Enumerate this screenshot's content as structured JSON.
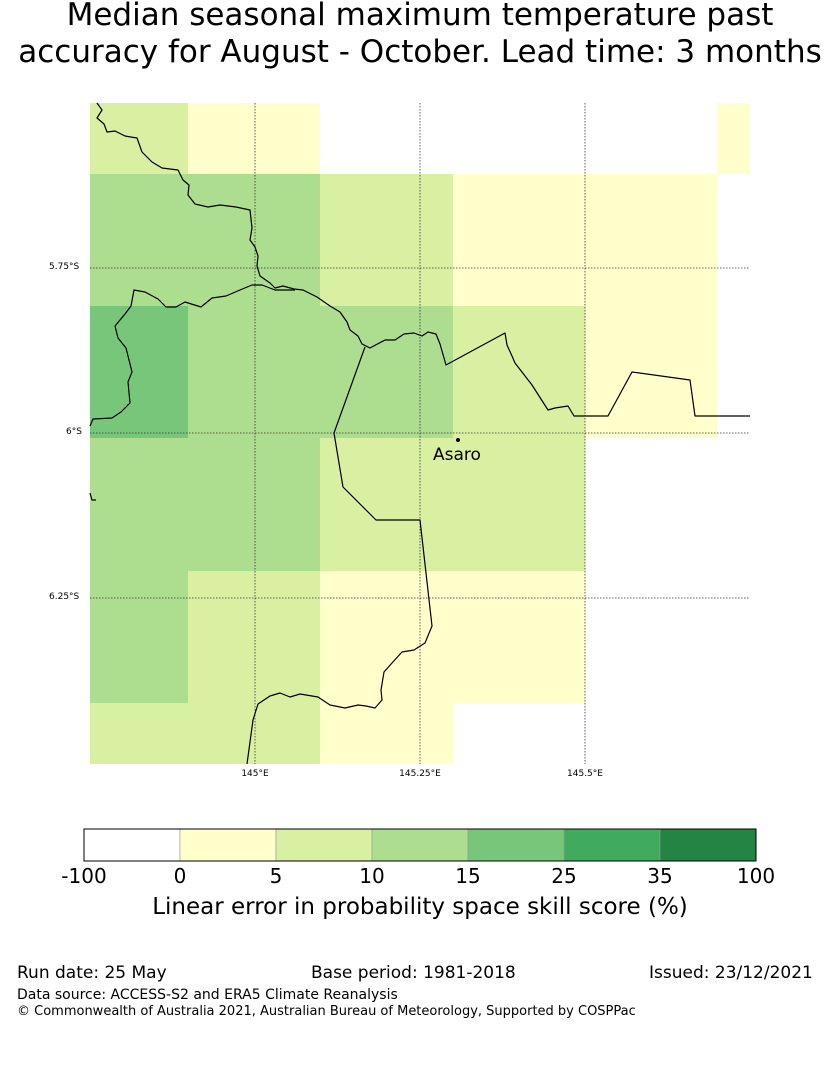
{
  "title": {
    "line1": "Median seasonal maximum temperature past",
    "line2": "accuracy for August - October. Lead time: 3 months"
  },
  "map": {
    "lat_ticks": [
      "5.75°S",
      "6°S",
      "6.25°S"
    ],
    "lon_ticks": [
      "145°E",
      "145.25°E",
      "145.5°E"
    ],
    "place": "Asaro",
    "grid_cells": [
      {
        "row": 0,
        "col": 0,
        "bin": "5-10"
      },
      {
        "row": 0,
        "col": 1,
        "bin": "0-5"
      },
      {
        "row": 0,
        "col": 5,
        "bin": "0-5"
      },
      {
        "row": 1,
        "col": 0,
        "bin": "10-15"
      },
      {
        "row": 1,
        "col": 1,
        "bin": "10-15"
      },
      {
        "row": 1,
        "col": 2,
        "bin": "5-10"
      },
      {
        "row": 1,
        "col": 3,
        "bin": "0-5"
      },
      {
        "row": 1,
        "col": 4,
        "bin": "0-5"
      },
      {
        "row": 2,
        "col": 0,
        "bin": "15-25"
      },
      {
        "row": 2,
        "col": 1,
        "bin": "10-15"
      },
      {
        "row": 2,
        "col": 2,
        "bin": "10-15"
      },
      {
        "row": 2,
        "col": 3,
        "bin": "5-10"
      },
      {
        "row": 2,
        "col": 4,
        "bin": "0-5"
      },
      {
        "row": 3,
        "col": 0,
        "bin": "10-15"
      },
      {
        "row": 3,
        "col": 1,
        "bin": "10-15"
      },
      {
        "row": 3,
        "col": 2,
        "bin": "5-10"
      },
      {
        "row": 3,
        "col": 3,
        "bin": "5-10"
      },
      {
        "row": 4,
        "col": 0,
        "bin": "10-15"
      },
      {
        "row": 4,
        "col": 1,
        "bin": "5-10"
      },
      {
        "row": 4,
        "col": 2,
        "bin": "0-5"
      },
      {
        "row": 4,
        "col": 3,
        "bin": "0-5"
      },
      {
        "row": 5,
        "col": 0,
        "bin": "5-10"
      },
      {
        "row": 5,
        "col": 1,
        "bin": "5-10"
      },
      {
        "row": 5,
        "col": 2,
        "bin": "0-5"
      }
    ]
  },
  "colorbar": {
    "labels": [
      "-100",
      "0",
      "5",
      "10",
      "15",
      "25",
      "35",
      "100"
    ],
    "colors": [
      "#ffffff",
      "#ffffcc",
      "#d9f0a3",
      "#addd8e",
      "#78c679",
      "#41ab5d",
      "#238443"
    ],
    "bins": [
      "-100-0",
      "0-5",
      "5-10",
      "10-15",
      "15-25",
      "25-35",
      "35-100"
    ],
    "title": "Linear error in probability space skill score (%)"
  },
  "footer": {
    "run_date": "Run date: 25 May",
    "base_period": "Base period: 1981-2018",
    "issued": "Issued: 23/12/2021",
    "data_source": "Data source: ACCESS-S2 and ERA5 Climate Reanalysis",
    "copyright": "© Commonwealth of Australia 2021, Australian Bureau of Meteorology, Supported by COSPPac"
  }
}
